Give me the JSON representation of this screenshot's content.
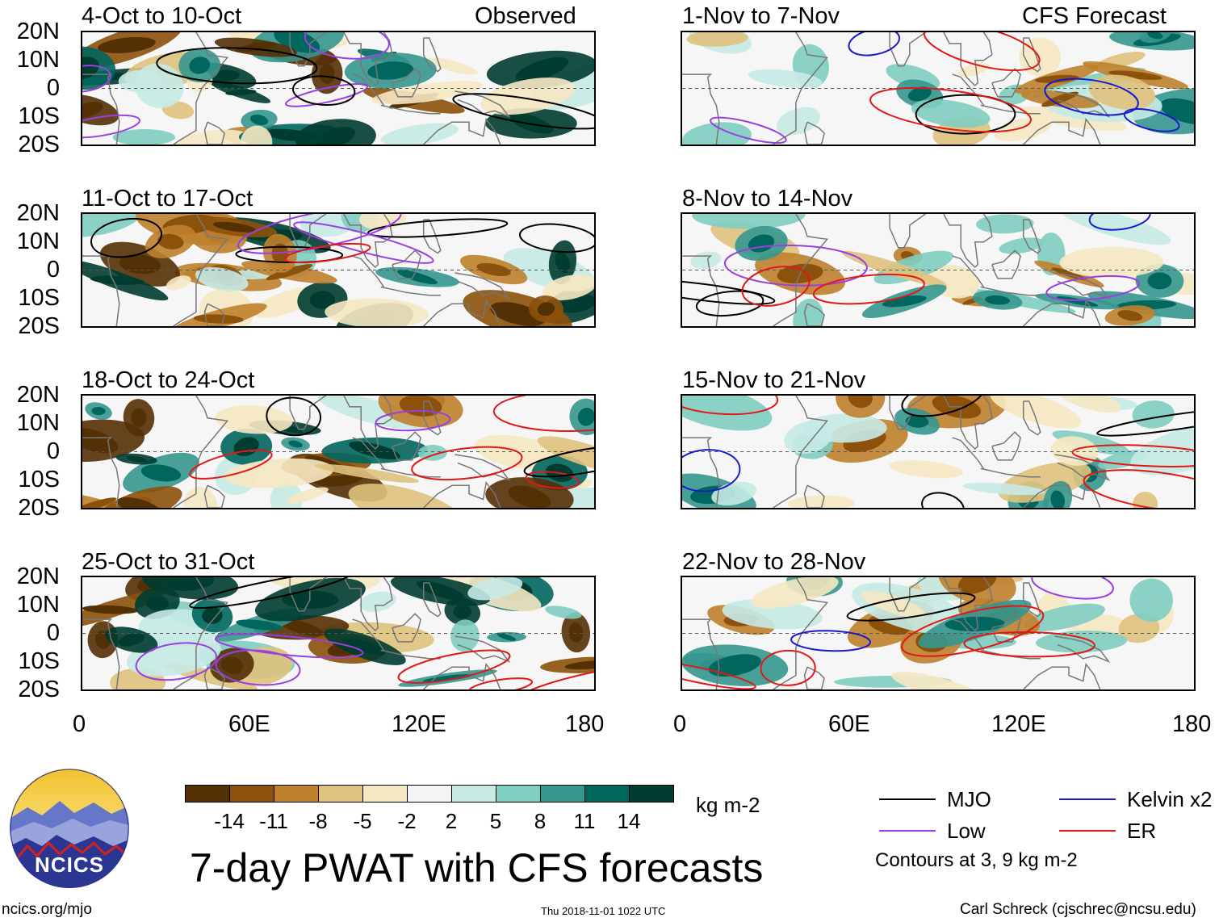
{
  "chart_data": {
    "type": "heatmap",
    "title": "7-day PWAT with CFS forecasts",
    "units": "kg m-2",
    "panel_headers": {
      "left": "Observed",
      "right": "CFS Forecast"
    },
    "x_ticks": [
      "0",
      "60E",
      "120E",
      "180"
    ],
    "y_ticks": [
      "20N",
      "10N",
      "0",
      "10S",
      "20S"
    ],
    "xlim_deg_east": [
      0,
      180
    ],
    "ylim_deg": [
      -20,
      20
    ],
    "panels": [
      {
        "period": "4-Oct to 10-Oct",
        "type": "observed"
      },
      {
        "period": "11-Oct to 17-Oct",
        "type": "observed"
      },
      {
        "period": "18-Oct to 24-Oct",
        "type": "observed"
      },
      {
        "period": "25-Oct to 31-Oct",
        "type": "observed"
      },
      {
        "period": "1-Nov to 7-Nov",
        "type": "forecast"
      },
      {
        "period": "8-Nov to 14-Nov",
        "type": "forecast"
      },
      {
        "period": "15-Nov to 21-Nov",
        "type": "forecast"
      },
      {
        "period": "22-Nov to 28-Nov",
        "type": "forecast"
      }
    ],
    "colorbar": {
      "labels": [
        "-14",
        "-11",
        "-8",
        "-5",
        "-2",
        "2",
        "5",
        "8",
        "11",
        "14"
      ],
      "colors": [
        "#543005",
        "#8c510a",
        "#bf812d",
        "#dfc27d",
        "#f6e8c3",
        "#f5f5f5",
        "#c7eae5",
        "#80cdc1",
        "#35978f",
        "#01665e",
        "#003c30"
      ]
    },
    "legend": [
      {
        "label": "MJO",
        "color": "#000000"
      },
      {
        "label": "Kelvin x2",
        "color": "#1a1acc"
      },
      {
        "label": "Low",
        "color": "#9a3fe0"
      },
      {
        "label": "ER",
        "color": "#e01818"
      }
    ],
    "contour_note": "Contours at 3, 9 kg m-2"
  },
  "footer": {
    "logo_text": "NCICS",
    "url": "ncics.org/mjo",
    "timestamp": "Thu 2018-11-01 1022 UTC",
    "credit": "Carl Schreck (cjschrec@ncsu.edu)"
  }
}
